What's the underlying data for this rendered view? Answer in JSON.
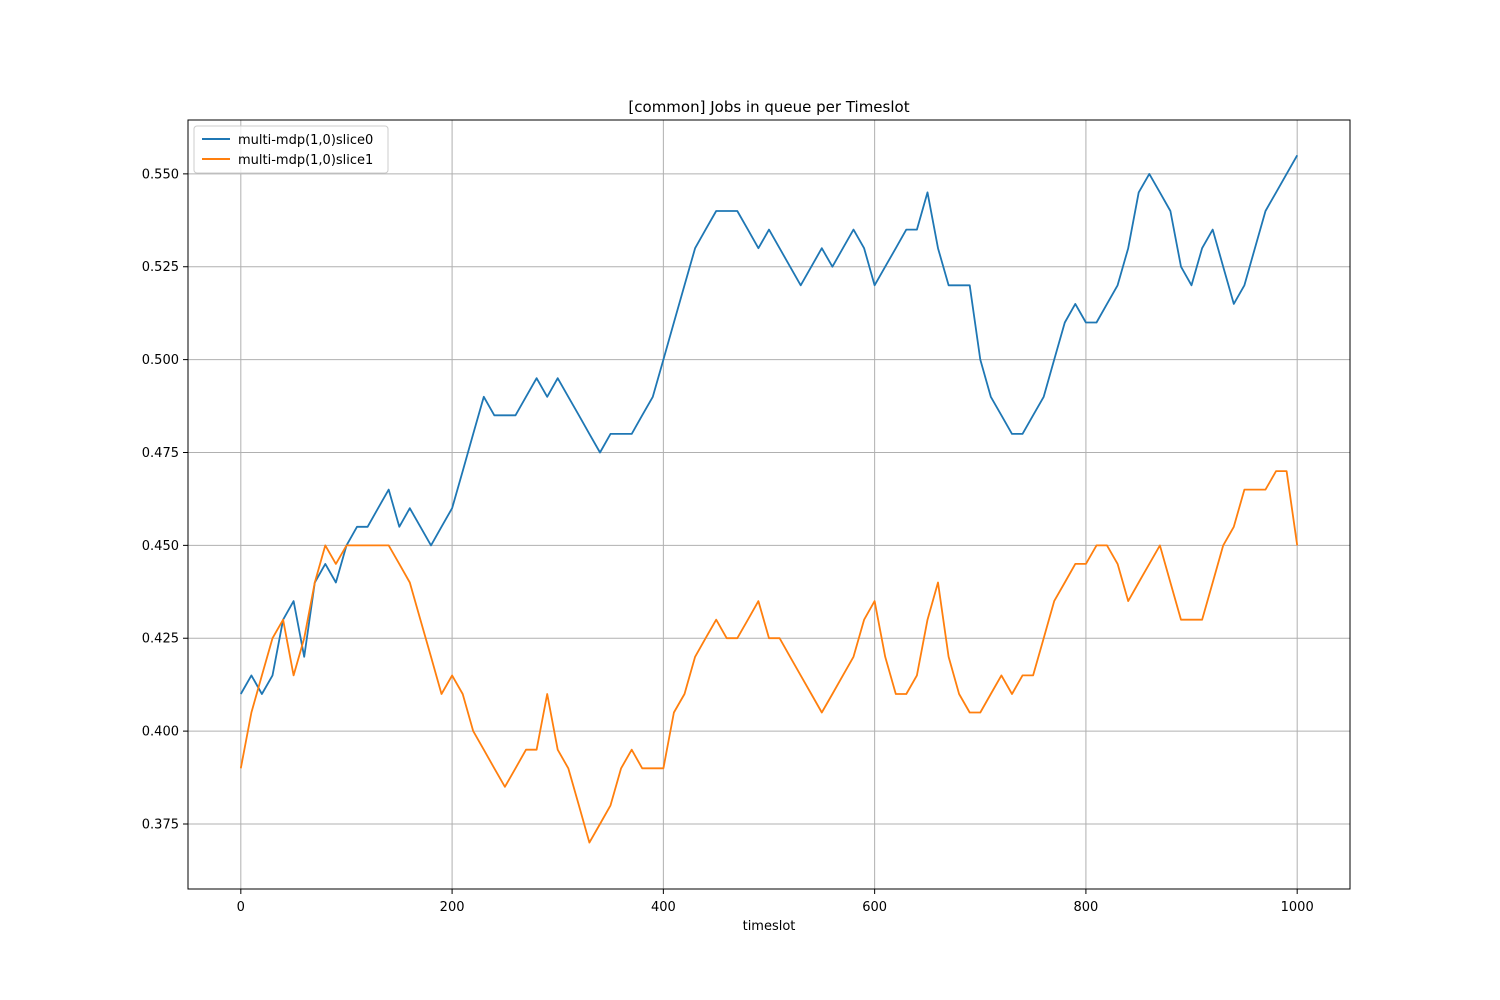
{
  "chart_data": {
    "type": "line",
    "title": "[common] Jobs in queue per Timeslot",
    "xlabel": "timeslot",
    "ylabel": "",
    "xlim": [
      -50,
      1050
    ],
    "ylim": [
      0.3575,
      0.5645
    ],
    "xticks": [
      0,
      200,
      400,
      600,
      800,
      1000
    ],
    "yticks": [
      0.375,
      0.4,
      0.425,
      0.45,
      0.475,
      0.5,
      0.525,
      0.55
    ],
    "xtick_labels": [
      "0",
      "200",
      "400",
      "600",
      "800",
      "1000"
    ],
    "ytick_labels": [
      "0.375",
      "0.400",
      "0.425",
      "0.450",
      "0.475",
      "0.500",
      "0.525",
      "0.550"
    ],
    "grid": true,
    "legend_position": "top-left",
    "x": [
      0,
      10,
      20,
      30,
      40,
      50,
      60,
      70,
      80,
      90,
      100,
      110,
      120,
      130,
      140,
      150,
      160,
      170,
      180,
      190,
      200,
      210,
      220,
      230,
      240,
      250,
      260,
      270,
      280,
      290,
      300,
      310,
      320,
      330,
      340,
      350,
      360,
      370,
      380,
      390,
      400,
      410,
      420,
      430,
      440,
      450,
      460,
      470,
      480,
      490,
      500,
      510,
      520,
      530,
      540,
      550,
      560,
      570,
      580,
      590,
      600,
      610,
      620,
      630,
      640,
      650,
      660,
      670,
      680,
      690,
      700,
      710,
      720,
      730,
      740,
      750,
      760,
      770,
      780,
      790,
      800,
      810,
      820,
      830,
      840,
      850,
      860,
      870,
      880,
      890,
      900,
      910,
      920,
      930,
      940,
      950,
      960,
      970,
      980,
      990,
      1000
    ],
    "series": [
      {
        "name": "multi-mdp(1,0)slice0",
        "color": "#1f77b4",
        "values": [
          0.41,
          0.415,
          0.41,
          0.415,
          0.43,
          0.435,
          0.42,
          0.44,
          0.445,
          0.44,
          0.45,
          0.455,
          0.455,
          0.46,
          0.465,
          0.455,
          0.46,
          0.455,
          0.45,
          0.455,
          0.46,
          0.47,
          0.48,
          0.49,
          0.485,
          0.485,
          0.485,
          0.49,
          0.495,
          0.49,
          0.495,
          0.49,
          0.485,
          0.48,
          0.475,
          0.48,
          0.48,
          0.48,
          0.485,
          0.49,
          0.5,
          0.51,
          0.52,
          0.53,
          0.535,
          0.54,
          0.54,
          0.54,
          0.535,
          0.53,
          0.535,
          0.53,
          0.525,
          0.52,
          0.525,
          0.53,
          0.525,
          0.53,
          0.535,
          0.53,
          0.52,
          0.525,
          0.53,
          0.535,
          0.535,
          0.545,
          0.53,
          0.52,
          0.52,
          0.52,
          0.5,
          0.49,
          0.485,
          0.48,
          0.48,
          0.485,
          0.49,
          0.5,
          0.51,
          0.515,
          0.51,
          0.51,
          0.515,
          0.52,
          0.53,
          0.545,
          0.55,
          0.545,
          0.54,
          0.525,
          0.52,
          0.53,
          0.535,
          0.525,
          0.515,
          0.52,
          0.53,
          0.54,
          0.545,
          0.55,
          0.555
        ]
      },
      {
        "name": "multi-mdp(1,0)slice1",
        "color": "#ff7f0e",
        "values": [
          0.39,
          0.405,
          0.415,
          0.425,
          0.43,
          0.415,
          0.425,
          0.44,
          0.45,
          0.445,
          0.45,
          0.45,
          0.45,
          0.45,
          0.45,
          0.445,
          0.44,
          0.43,
          0.42,
          0.41,
          0.415,
          0.41,
          0.4,
          0.395,
          0.39,
          0.385,
          0.39,
          0.395,
          0.395,
          0.41,
          0.395,
          0.39,
          0.38,
          0.37,
          0.375,
          0.38,
          0.39,
          0.395,
          0.39,
          0.39,
          0.39,
          0.405,
          0.41,
          0.42,
          0.425,
          0.43,
          0.425,
          0.425,
          0.43,
          0.435,
          0.425,
          0.425,
          0.42,
          0.415,
          0.41,
          0.405,
          0.41,
          0.415,
          0.42,
          0.43,
          0.435,
          0.42,
          0.41,
          0.41,
          0.415,
          0.43,
          0.44,
          0.42,
          0.41,
          0.405,
          0.405,
          0.41,
          0.415,
          0.41,
          0.415,
          0.415,
          0.425,
          0.435,
          0.44,
          0.445,
          0.445,
          0.45,
          0.45,
          0.445,
          0.435,
          0.44,
          0.445,
          0.45,
          0.44,
          0.43,
          0.43,
          0.43,
          0.44,
          0.45,
          0.455,
          0.465,
          0.465,
          0.465,
          0.47,
          0.47,
          0.45
        ]
      }
    ]
  }
}
